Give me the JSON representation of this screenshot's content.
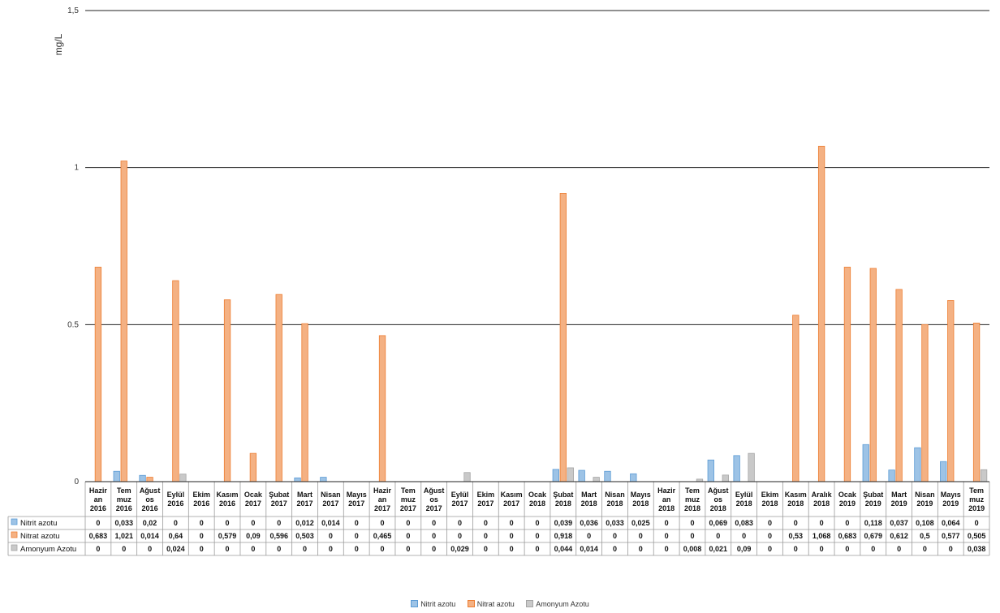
{
  "colors": {
    "nitrit": "#9dc3e6",
    "nitrat": "#f4b183",
    "amonyum": "#c9c9c9",
    "nitrit_edge": "#5b9bd5",
    "nitrat_edge": "#ed7d31",
    "amonyum_edge": "#a5a5a5"
  },
  "chart_data": {
    "type": "bar",
    "ylabel": "mg/L",
    "ylim": [
      0,
      1.5
    ],
    "yticks": [
      "0",
      "0.5",
      "1",
      "1,5"
    ],
    "grid": true,
    "legend_placement": "bottom",
    "categories": [
      [
        "Hazir",
        "an",
        "2016"
      ],
      [
        "Tem",
        "muz",
        "2016"
      ],
      [
        "Ağust",
        "os",
        "2016"
      ],
      [
        "Eylül",
        "2016"
      ],
      [
        "Ekim",
        "2016"
      ],
      [
        "Kasım",
        "2016"
      ],
      [
        "Ocak",
        "2017"
      ],
      [
        "Şubat",
        "2017"
      ],
      [
        "Mart",
        "2017"
      ],
      [
        "Nisan",
        "2017"
      ],
      [
        "Mayıs",
        "2017"
      ],
      [
        "Hazir",
        "an",
        "2017"
      ],
      [
        "Tem",
        "muz",
        "2017"
      ],
      [
        "Ağust",
        "os",
        "2017"
      ],
      [
        "Eylül",
        "2017"
      ],
      [
        "Ekim",
        "2017"
      ],
      [
        "Kasım",
        "2017"
      ],
      [
        "Ocak",
        "2018"
      ],
      [
        "Şubat",
        "2018"
      ],
      [
        "Mart",
        "2018"
      ],
      [
        "Nisan",
        "2018"
      ],
      [
        "Mayıs",
        "2018"
      ],
      [
        "Hazir",
        "an",
        "2018"
      ],
      [
        "Tem",
        "muz",
        "2018"
      ],
      [
        "Ağust",
        "os",
        "2018"
      ],
      [
        "Eylül",
        "2018"
      ],
      [
        "Ekim",
        "2018"
      ],
      [
        "Kasım",
        "2018"
      ],
      [
        "Aralık",
        "2018"
      ],
      [
        "Ocak",
        "2019"
      ],
      [
        "Şubat",
        "2019"
      ],
      [
        "Mart",
        "2019"
      ],
      [
        "Nisan",
        "2019"
      ],
      [
        "Mayıs",
        "2019"
      ],
      [
        "Tem",
        "muz",
        "2019"
      ]
    ],
    "series": [
      {
        "name": "Nitrit azotu",
        "key": "nitrit",
        "values": [
          0,
          0.033,
          0.02,
          0,
          0,
          0,
          0,
          0,
          0.012,
          0.014,
          0,
          0,
          0,
          0,
          0,
          0,
          0,
          0,
          0.039,
          0.036,
          0.033,
          0.025,
          0,
          0,
          0.069,
          0.083,
          0,
          0,
          0,
          0,
          0.118,
          0.037,
          0.108,
          0.064,
          0
        ],
        "labels": [
          "0",
          "0,033",
          "0,02",
          "0",
          "0",
          "0",
          "0",
          "0",
          "0,012",
          "0,014",
          "0",
          "0",
          "0",
          "0",
          "0",
          "0",
          "0",
          "0",
          "0,039",
          "0,036",
          "0,033",
          "0,025",
          "0",
          "0",
          "0,069",
          "0,083",
          "0",
          "0",
          "0",
          "0",
          "0,118",
          "0,037",
          "0,108",
          "0,064",
          "0"
        ]
      },
      {
        "name": "Nitrat azotu",
        "key": "nitrat",
        "values": [
          0.683,
          1.021,
          0.014,
          0.64,
          0,
          0.579,
          0.09,
          0.596,
          0.503,
          0,
          0,
          0.465,
          0,
          0,
          0,
          0,
          0,
          0,
          0.918,
          0,
          0,
          0,
          0,
          0,
          0,
          0,
          0,
          0.53,
          1.068,
          0.683,
          0.679,
          0.612,
          0.5,
          0.577,
          0.505
        ],
        "labels": [
          "0,683",
          "1,021",
          "0,014",
          "0,64",
          "0",
          "0,579",
          "0,09",
          "0,596",
          "0,503",
          "0",
          "0",
          "0,465",
          "0",
          "0",
          "0",
          "0",
          "0",
          "0",
          "0,918",
          "0",
          "0",
          "0",
          "0",
          "0",
          "0",
          "0",
          "0",
          "0,53",
          "1,068",
          "0,683",
          "0,679",
          "0,612",
          "0,5",
          "0,577",
          "0,505"
        ]
      },
      {
        "name": "Amonyum Azotu",
        "key": "amonyum",
        "values": [
          0,
          0,
          0,
          0.024,
          0,
          0,
          0,
          0,
          0,
          0,
          0,
          0,
          0,
          0,
          0.029,
          0,
          0,
          0,
          0.044,
          0.014,
          0,
          0,
          0,
          0.008,
          0.021,
          0.09,
          0,
          0,
          0,
          0,
          0,
          0,
          0,
          0,
          0.038
        ],
        "labels": [
          "0",
          "0",
          "0",
          "0,024",
          "0",
          "0",
          "0",
          "0",
          "0",
          "0",
          "0",
          "0",
          "0",
          "0",
          "0,029",
          "0",
          "0",
          "0",
          "0,044",
          "0,014",
          "0",
          "0",
          "0",
          "0,008",
          "0,021",
          "0,09",
          "0",
          "0",
          "0",
          "0",
          "0",
          "0",
          "0",
          "0",
          "0,038"
        ]
      }
    ]
  }
}
